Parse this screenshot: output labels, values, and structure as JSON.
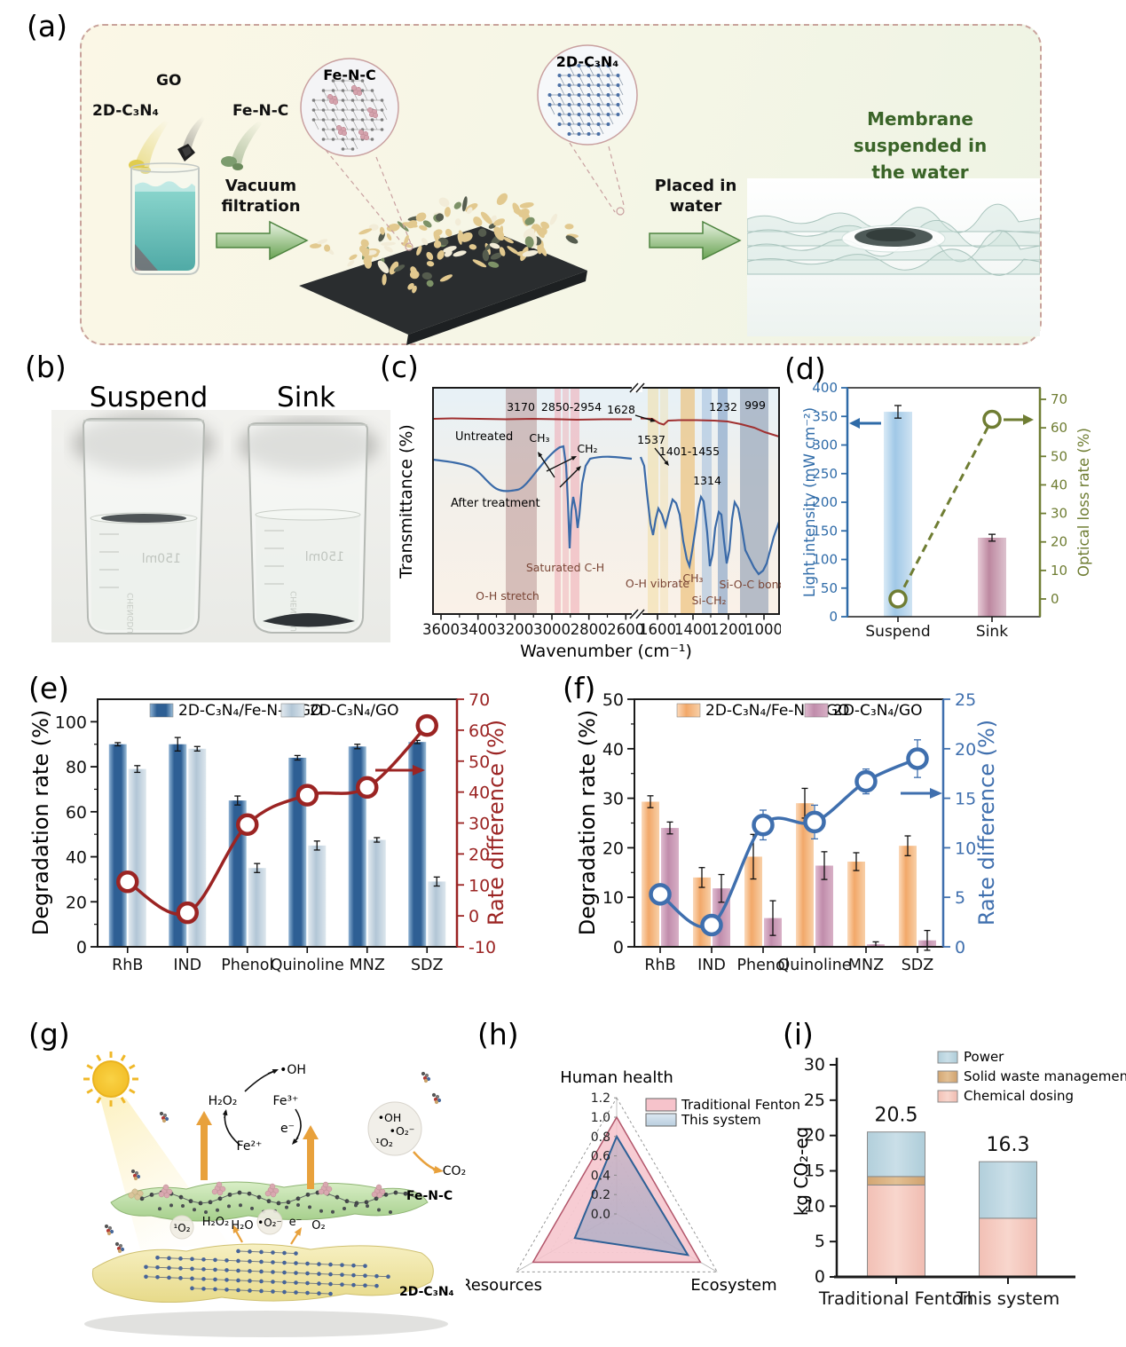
{
  "panels": {
    "a": {
      "letter": "(a)",
      "ingredients": [
        "2D-C₃N₄",
        "GO",
        "Fe-N-C"
      ],
      "step1": "Vacuum\nfiltration",
      "step2": "Placed in\nwater",
      "inset1_label": "Fe-N-C",
      "inset2_label": "2D-C₃N₄",
      "caption": "Membrane\nsuspended in\nthe water"
    },
    "b": {
      "letter": "(b)",
      "left_label": "Suspend",
      "right_label": "Sink",
      "beaker_volume": "150ml",
      "beaker_brand": "CHENGDU"
    },
    "c": {
      "letter": "(c)"
    },
    "d": {
      "letter": "(d)"
    },
    "e": {
      "letter": "(e)"
    },
    "f": {
      "letter": "(f)"
    },
    "g": {
      "letter": "(g)",
      "cycle": {
        "oh": "•OH",
        "h2o2": "H₂O₂",
        "fe3": "Fe³⁺",
        "fe2": "Fe²⁺",
        "e": "e⁻"
      },
      "ros": [
        "•OH",
        "•O₂⁻",
        "¹O₂"
      ],
      "co2": "CO₂",
      "sheet1": "Fe-N-C",
      "sheet2": "2D-C₃N₄",
      "bottom": {
        "singlet": "¹O₂",
        "h2o2": "H₂O₂",
        "h2o": "H₂O",
        "superoxide": "•O₂⁻",
        "e": "e⁻",
        "o2": "O₂"
      }
    },
    "h": {
      "letter": "(h)"
    },
    "i": {
      "letter": "(i)"
    }
  },
  "chart_data": [
    {
      "id": "c",
      "type": "line",
      "xlabel": "Wavenumber (cm⁻¹)",
      "ylabel": "Transmittance (%)",
      "x_ticks": [
        "3600",
        "3400",
        "3200",
        "3000",
        "2800",
        "2600",
        "1600",
        "1400",
        "1200",
        "1000"
      ],
      "axis_break": true,
      "series": [
        {
          "name": "Untreated"
        },
        {
          "name": "After treatment"
        }
      ],
      "peaks": {
        "p3170": "3170",
        "p2850": "2850-2954",
        "p1628": "1628",
        "p1537": "1537",
        "p1401": "1401-1455",
        "p1314": "1314",
        "p1232": "1232",
        "p999": "999",
        "ch3": "CH₃",
        "ch2": "CH₂"
      },
      "bands": {
        "oh_stretch": "O-H stretch",
        "sat_ch": "Saturated C-H",
        "oh_vibrate": "O-H vibrate",
        "ch3": "CH₃",
        "si_ch2": "Si-CH₂",
        "si_o_c": "Si-O-C bond"
      }
    },
    {
      "id": "d",
      "type": "bar+line",
      "categories": [
        "Suspend",
        "Sink"
      ],
      "bars": {
        "name": "Light intensity",
        "values": [
          358,
          138
        ],
        "errors": [
          11,
          6
        ]
      },
      "line": {
        "name": "Optical loss rate",
        "values": [
          0,
          63
        ]
      },
      "ylabel_left": "Light intensity (mW cm⁻²)",
      "ylabel_right": "Optical loss rate (%)",
      "ylim_left": [
        0,
        400
      ],
      "yticks_left": [
        0,
        50,
        100,
        150,
        200,
        250,
        300,
        350,
        400
      ],
      "ylim_right": [
        0,
        70
      ],
      "yticks_right": [
        0,
        10,
        20,
        30,
        40,
        50,
        60,
        70
      ]
    },
    {
      "id": "e",
      "type": "bar+line",
      "categories": [
        "RhB",
        "IND",
        "Phenol",
        "Quinoline",
        "MNZ",
        "SDZ"
      ],
      "ylabel_left": "Degradation rate (%)",
      "ylabel_right": "Rate difference (%)",
      "series": [
        {
          "name": "2D-C₃N₄/Fe-N-C/GO",
          "values": [
            90,
            90,
            65,
            84,
            89,
            91
          ],
          "errors": [
            0.7,
            3,
            2,
            1,
            1,
            0.7
          ]
        },
        {
          "name": "2D-C₃N₄/GO",
          "values": [
            79,
            88,
            35,
            45,
            47.5,
            29
          ],
          "errors": [
            1.5,
            1,
            2,
            2,
            1,
            2
          ]
        }
      ],
      "line": {
        "name": "Rate difference",
        "values": [
          11,
          1,
          29.5,
          39,
          41.5,
          61.5
        ],
        "errors": [
          1.5,
          1.5,
          1.5,
          1.5,
          2.5,
          1.5
        ]
      },
      "ylim_left": [
        0,
        110
      ],
      "yticks_left": [
        0,
        20,
        40,
        60,
        80,
        100
      ],
      "ylim_right": [
        -10,
        70
      ],
      "yticks_right": [
        -10,
        0,
        10,
        20,
        30,
        40,
        50,
        60,
        70
      ]
    },
    {
      "id": "f",
      "type": "bar+line",
      "categories": [
        "RhB",
        "IND",
        "Phenol",
        "Quinoline",
        "MNZ",
        "SDZ"
      ],
      "ylabel_left": "Degradation rate (%)",
      "ylabel_right": "Rate difference (%)",
      "series": [
        {
          "name": "2D-C₃N₄/Fe-N-C/GO",
          "values": [
            29.3,
            14,
            18.2,
            29,
            17.2,
            20.4
          ],
          "errors": [
            1.2,
            2,
            4.5,
            3,
            1.8,
            2
          ]
        },
        {
          "name": "2D-C₃N₄/GO",
          "values": [
            24,
            11.8,
            5.8,
            16.4,
            0.5,
            1.3
          ],
          "errors": [
            1.2,
            2.8,
            3.5,
            2.8,
            0.5,
            2
          ]
        }
      ],
      "line": {
        "name": "Rate difference",
        "values": [
          5.3,
          2.2,
          12.3,
          12.6,
          16.7,
          19
        ],
        "errors": [
          0.3,
          0.9,
          1.5,
          1.7,
          1.25,
          1.9
        ]
      },
      "ylim_left": [
        0,
        50
      ],
      "yticks_left": [
        0,
        10,
        20,
        30,
        40,
        50
      ],
      "ylim_right": [
        0,
        25
      ],
      "yticks_right": [
        0,
        5,
        10,
        15,
        20,
        25
      ]
    },
    {
      "id": "h",
      "type": "radar",
      "axes": [
        "Human health",
        "Ecosystem",
        "Resources"
      ],
      "rlim": [
        0,
        1.2
      ],
      "rticks": [
        0,
        0.2,
        0.4,
        0.6,
        0.8,
        1,
        1.2
      ],
      "series": [
        {
          "name": "Traditional Fenton",
          "values": [
            1.0,
            1.0,
            1.0
          ]
        },
        {
          "name": "This system",
          "values": [
            0.8,
            0.85,
            0.5
          ]
        }
      ]
    },
    {
      "id": "i",
      "type": "stacked-bar",
      "categories": [
        "Traditional Fenton",
        "This system"
      ],
      "ylabel": "kg CO₂-eq",
      "series": [
        {
          "name": "Chemical dosing",
          "values": [
            13,
            8.3
          ]
        },
        {
          "name": "Solid waste management",
          "values": [
            1.2,
            0
          ]
        },
        {
          "name": "Power",
          "values": [
            6.3,
            8
          ]
        }
      ],
      "totals": [
        "20.5",
        "16.3"
      ],
      "ylim": [
        0,
        30
      ],
      "yticks": [
        0,
        5,
        10,
        15,
        20,
        25,
        30
      ]
    }
  ]
}
